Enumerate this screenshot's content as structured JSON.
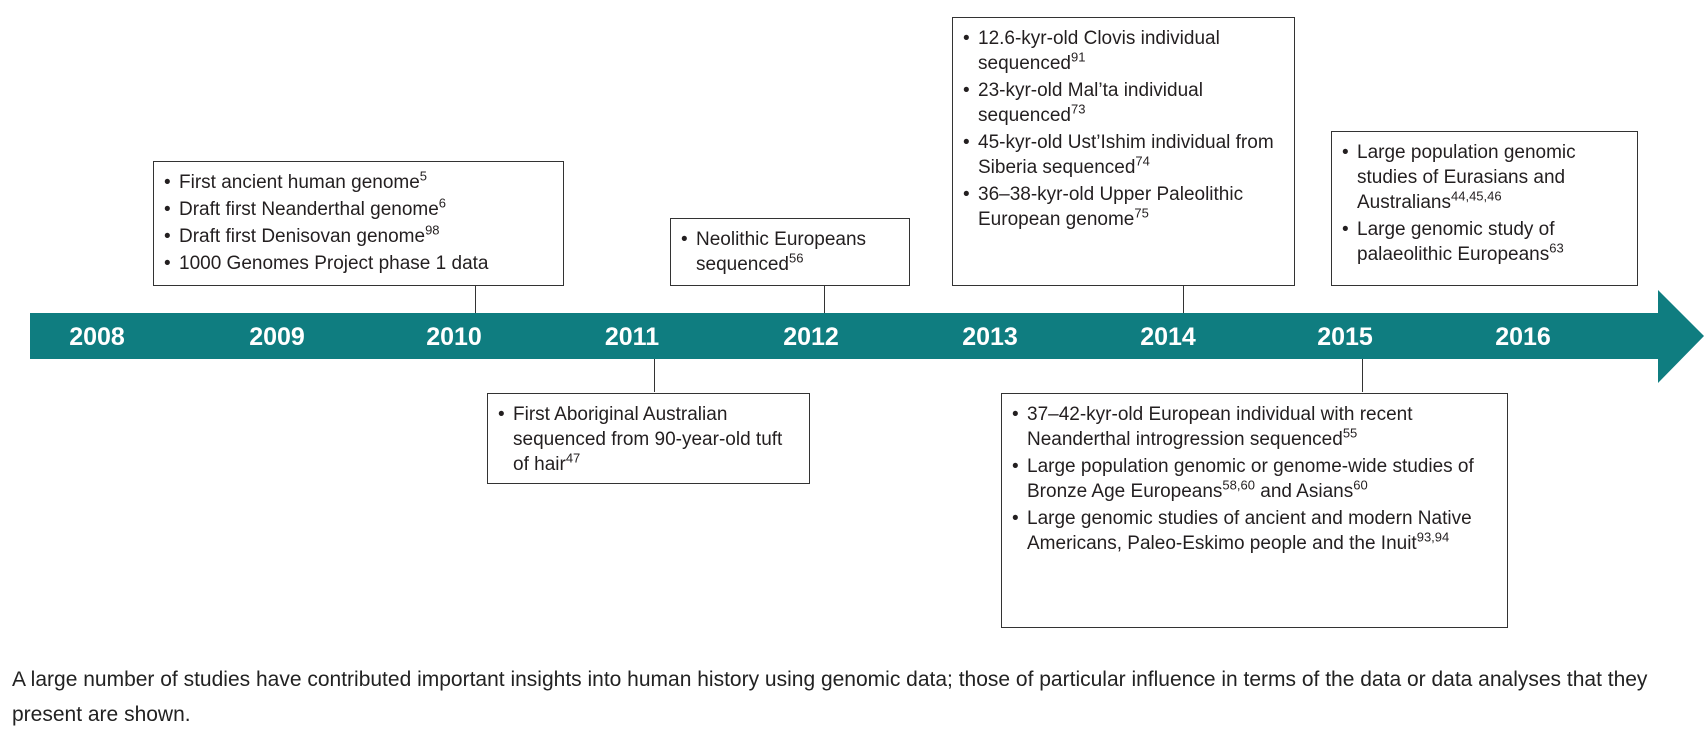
{
  "timeline": {
    "arrow_color": "#0f7d80",
    "years": [
      "2008",
      "2009",
      "2010",
      "2011",
      "2012",
      "2013",
      "2014",
      "2015",
      "2016"
    ]
  },
  "events": {
    "e2010": [
      {
        "text": "First ancient human genome",
        "sup": "5"
      },
      {
        "text": "Draft first Neanderthal genome",
        "sup": "6"
      },
      {
        "text": "Draft first Denisovan genome",
        "sup": "98"
      },
      {
        "text": "1000 Genomes Project phase 1 data",
        "sup": ""
      }
    ],
    "e2011": [
      {
        "text": "First Aboriginal Australian sequenced from 90-year-old tuft of hair",
        "sup": "47"
      }
    ],
    "e2012": [
      {
        "text": "Neolithic Europeans sequenced",
        "sup": "56"
      }
    ],
    "e2014": [
      {
        "text": "12.6-kyr-old Clovis individual sequenced",
        "sup": "91"
      },
      {
        "text": "23-kyr-old Mal’ta individual sequenced",
        "sup": "73"
      },
      {
        "text": "45-kyr-old Ust’Ishim individual from Siberia sequenced",
        "sup": "74"
      },
      {
        "text": "36–38-kyr-old Upper Paleolithic European genome",
        "sup": "75"
      }
    ],
    "e2015": [
      {
        "text": "37–42-kyr-old European individual with recent Neanderthal introgression sequenced",
        "sup": "55"
      },
      {
        "text": "Large population genomic or genome-wide studies of Bronze Age Europeans",
        "sup": "58,60",
        "text2": " and Asians",
        "sup2": "60"
      },
      {
        "text": "Large genomic studies of ancient and modern Native Americans, Paleo-Eskimo people and the Inuit",
        "sup": "93,94"
      }
    ],
    "e2016": [
      {
        "text": "Large population genomic studies of Eurasians and Australians",
        "sup": "44,45,46"
      },
      {
        "text": "Large genomic study of palaeolithic Europeans",
        "sup": "63"
      }
    ]
  },
  "caption": "A large number of studies have contributed important insights into human history using genomic data; those of particular influence in terms of the data or data analyses that they present are shown."
}
